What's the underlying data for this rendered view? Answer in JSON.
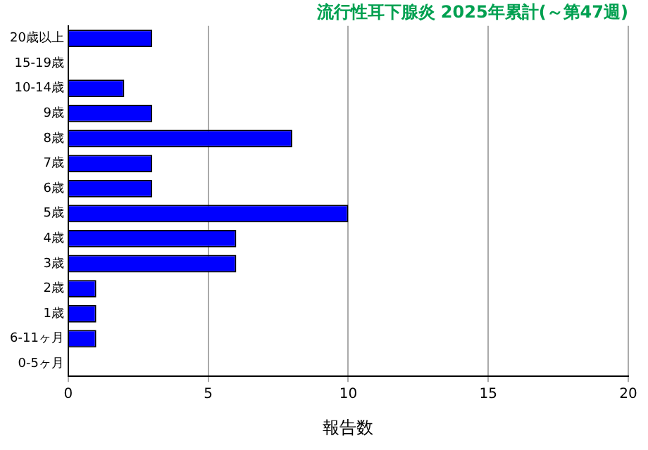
{
  "chart_data": {
    "type": "bar",
    "orientation": "horizontal",
    "title": "流行性耳下腺炎 2025年累計(～第47週)",
    "xlabel": "報告数",
    "categories": [
      "20歳以上",
      "15-19歳",
      "10-14歳",
      "9歳",
      "8歳",
      "7歳",
      "6歳",
      "5歳",
      "4歳",
      "3歳",
      "2歳",
      "1歳",
      "6-11ヶ月",
      "0-5ヶ月"
    ],
    "values": [
      3,
      0,
      2,
      3,
      8,
      3,
      3,
      10,
      6,
      6,
      1,
      1,
      1,
      0
    ],
    "color": "#0000ff",
    "xlim": [
      0,
      20
    ],
    "xticks": [
      0,
      5,
      10,
      15,
      20
    ],
    "grid": "x",
    "legend": false
  }
}
